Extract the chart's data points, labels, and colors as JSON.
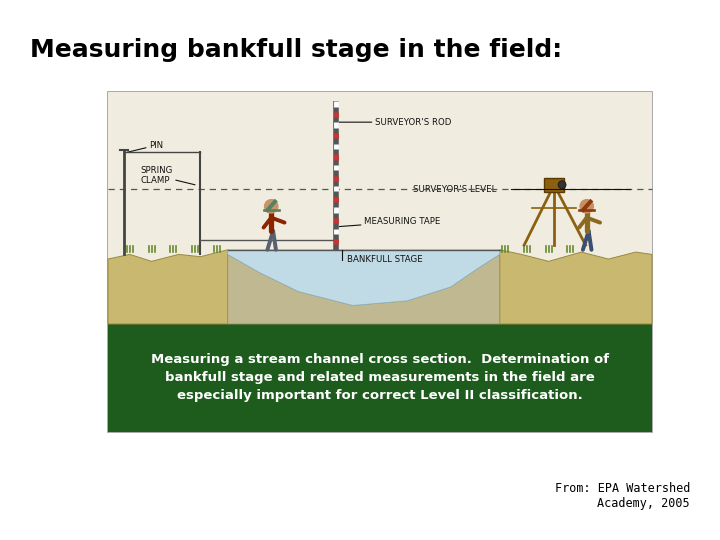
{
  "title": "Measuring bankfull stage in the field:",
  "title_fontsize": 18,
  "title_fontweight": "bold",
  "bg_color": "#ffffff",
  "caption_text": "From: EPA Watershed\nAcademy, 2005",
  "caption_fontsize": 8.5,
  "green_banner_color": "#1e5c1e",
  "green_banner_text": "Measuring a stream channel cross section.  Determination of\nbankfull stage and related measurements in the field are\nespecially important for correct Level II classification.",
  "green_banner_fontsize": 9.5,
  "diagram_bg": "#ffffff",
  "box_border_color": "#999999",
  "sky_color": "#f0ede0",
  "water_color": "#b8d8e8",
  "ground_color": "#c8b870",
  "rock_color": "#b0a888",
  "label_fontsize": 6.2,
  "label_color": "#111111",
  "rod_color": "#555555",
  "wire_color": "#444444",
  "surveyor_rod_label": "SURVEYOR'S ROD",
  "surveyor_level_label": "SURVEYOR'S LEVEL",
  "pin_label": "PIN",
  "spring_clamp_label": "SPRING\nCLAMP",
  "measuring_tape_label": "MEASURING TAPE",
  "bankfull_stage_label": "BANKFULL STAGE"
}
